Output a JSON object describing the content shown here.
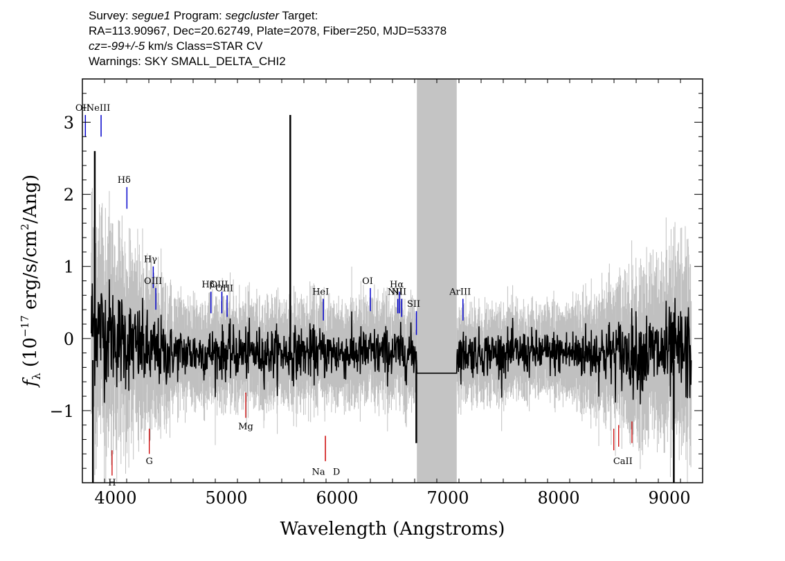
{
  "header": {
    "line1": {
      "a": "Survey: ",
      "survey": "segue1",
      "b": " Program: ",
      "program": "segcluster",
      "c": " Target:"
    },
    "line2": "RA=113.90967, Dec=20.62749, Plate=2078, Fiber=250, MJD=53378",
    "line3": {
      "cz": "cz=-99+/-5",
      "rest": " km/s Class=STAR CV"
    },
    "line4": "Warnings: SKY SMALL_DELTA_CHI2"
  },
  "chart_data": {
    "type": "line",
    "xlabel": "Wavelength (Angstroms)",
    "ylabel": "f_λ (10^-17 erg/s/cm^2/Ang)",
    "xlim": [
      3700,
      9300
    ],
    "ylim": [
      -2.0,
      3.6
    ],
    "xticks": [
      4000,
      5000,
      6000,
      7000,
      8000,
      9000
    ],
    "yticks": [
      -1,
      0,
      1,
      2,
      3
    ],
    "masked_region": [
      6720,
      7080
    ],
    "colors": {
      "flux": "#000000",
      "noise": "#c0c0c0",
      "emission": "#0000cc",
      "absorption": "#cc0000",
      "mask": "#c4c4c4"
    },
    "emission_lines": [
      {
        "label": "OII",
        "x": 3727,
        "y0": 2.8,
        "y1": 3.1
      },
      {
        "label": "NeIII",
        "x": 3869,
        "y0": 2.8,
        "y1": 3.1
      },
      {
        "label": "Hδ",
        "x": 4102,
        "y0": 1.8,
        "y1": 2.1
      },
      {
        "label": "Hγ",
        "x": 4340,
        "y0": 0.7,
        "y1": 1.0
      },
      {
        "label": "OIII",
        "x": 4363,
        "y0": 0.4,
        "y1": 0.7
      },
      {
        "label": "Hβ",
        "x": 4861,
        "y0": 0.35,
        "y1": 0.65
      },
      {
        "label": "OIII",
        "x": 4959,
        "y0": 0.35,
        "y1": 0.65
      },
      {
        "label": "OIII",
        "x": 5007,
        "y0": 0.3,
        "y1": 0.6
      },
      {
        "label": "HeI",
        "x": 5876,
        "y0": 0.25,
        "y1": 0.55
      },
      {
        "label": "OI",
        "x": 6300,
        "y0": 0.38,
        "y1": 0.7
      },
      {
        "label": "NII",
        "x": 6548,
        "y0": 0.35,
        "y1": 0.55
      },
      {
        "label": "Hα",
        "x": 6563,
        "y0": 0.35,
        "y1": 0.65
      },
      {
        "label": "NII",
        "x": 6583,
        "y0": 0.3,
        "y1": 0.55
      },
      {
        "label": "SII",
        "x": 6716,
        "y0": 0.05,
        "y1": 0.38
      },
      {
        "label": "ArIII",
        "x": 7136,
        "y0": 0.25,
        "y1": 0.55
      }
    ],
    "absorption_lines": [
      {
        "label": "H",
        "x": 3968,
        "y0": -1.9,
        "y1": -1.55
      },
      {
        "label": "G",
        "x": 4304,
        "y0": -1.6,
        "y1": -1.25
      },
      {
        "label": "Mg",
        "x": 5175,
        "y0": -1.1,
        "y1": -0.75
      },
      {
        "label": "Na",
        "x": 5894,
        "y0": -1.7,
        "y1": -1.35
      },
      {
        "label": "D",
        "x": 5894,
        "y0": -1.7,
        "y1": -1.35
      },
      {
        "label": "CaII",
        "x": 8498,
        "y0": -1.55,
        "y1": -1.25
      },
      {
        "label": "CaII",
        "x": 8542,
        "y0": -1.5,
        "y1": -1.2
      },
      {
        "label": "CaII",
        "x": 8662,
        "y0": -1.45,
        "y1": -1.15
      }
    ],
    "spikes": [
      {
        "x": 5577,
        "y": 3.1
      },
      {
        "x": 3812,
        "y": 2.6
      },
      {
        "x": 3795,
        "y": -2.0
      },
      {
        "x": 9040,
        "y": -2.0
      },
      {
        "x": 6715,
        "y": -1.45
      }
    ],
    "flux_end": {
      "x0": 3780,
      "x1": 9200,
      "y_mask": -0.48
    }
  }
}
